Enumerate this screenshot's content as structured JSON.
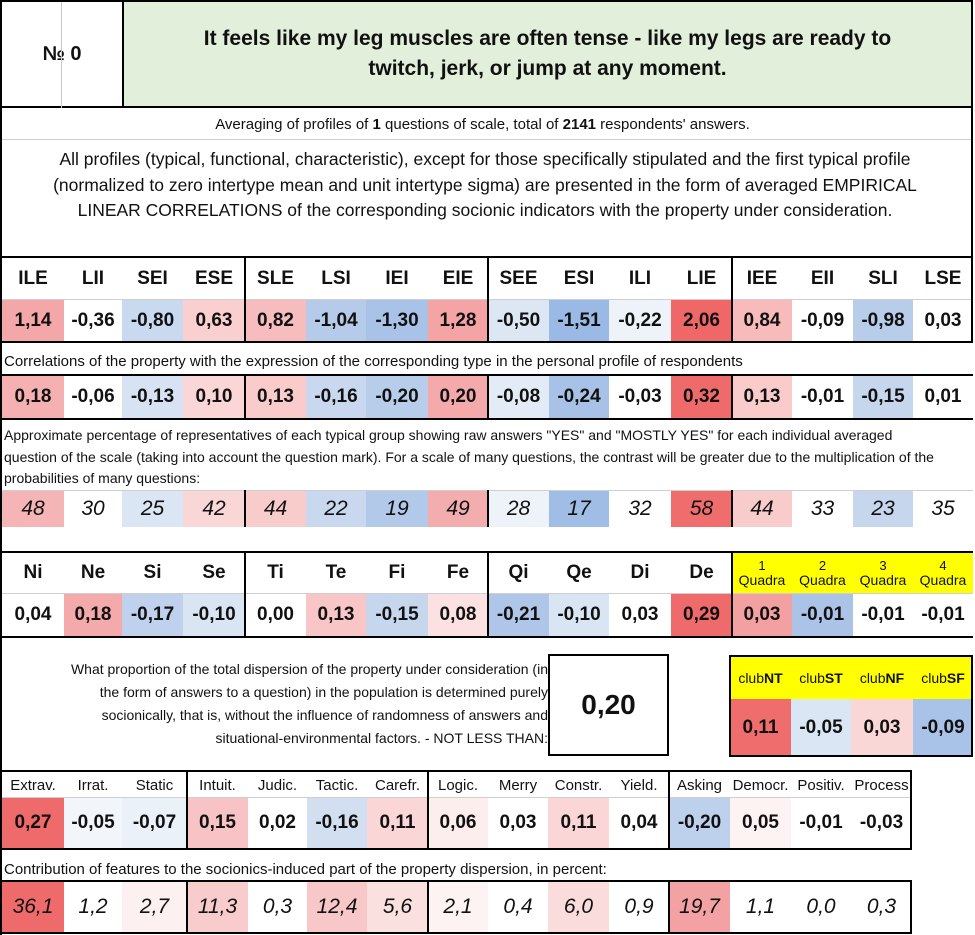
{
  "header": {
    "number_label": "№ 0",
    "title": "It feels like my leg muscles are often tense - like my legs are ready to twitch, jerk, or jump at any moment."
  },
  "averaging": {
    "prefix": "Averaging of profiles of ",
    "count": "1",
    "middle": " questions of scale, total of ",
    "respondents": "2141",
    "suffix": " respondents' answers."
  },
  "note": "All profiles (typical, functional, characteristic), except for those specifically stipulated and the first typical profile (normalized to zero intertype mean and unit intertype sigma) are presented in the form of averaged EMPIRICAL LINEAR CORRELATIONS of the corresponding socionic indicators with the property under consideration.",
  "types": {
    "headers": [
      "ILE",
      "LII",
      "SEI",
      "ESE",
      "SLE",
      "LSI",
      "IEI",
      "EIE",
      "SEE",
      "ESI",
      "ILI",
      "LIE",
      "IEE",
      "EII",
      "SLI",
      "LSE"
    ],
    "profile": [
      "1,14",
      "-0,36",
      "-0,80",
      "0,63",
      "0,82",
      "-1,04",
      "-1,30",
      "1,28",
      "-0,50",
      "-1,51",
      "-0,22",
      "2,06",
      "0,84",
      "-0,09",
      "-0,98",
      "0,03"
    ],
    "profile_colors": [
      "#f4a7a8",
      "#ffffff",
      "#c9d9ef",
      "#f9cfcf",
      "#f7bcbd",
      "#b6cbe9",
      "#a9c3e8",
      "#f4a4a5",
      "#dde7f4",
      "#9ab9e4",
      "#eef3fa",
      "#ef6767",
      "#f7bbbb",
      "#ffffff",
      "#b8cdea",
      "#ffffff"
    ],
    "corr_caption": "Correlations of the property with the expression of the corresponding type in the personal profile of respondents",
    "correlations": [
      "0,18",
      "-0,06",
      "-0,13",
      "0,10",
      "0,13",
      "-0,16",
      "-0,20",
      "0,20",
      "-0,08",
      "-0,24",
      "-0,03",
      "0,32",
      "0,13",
      "-0,01",
      "-0,15",
      "0,01"
    ],
    "corr_colors": [
      "#f5b0b1",
      "#ffffff",
      "#d7e2f2",
      "#fad6d6",
      "#f9cbcb",
      "#c9d8ee",
      "#b8cdea",
      "#f4aaab",
      "#e3ebf6",
      "#a8c2e7",
      "#ffffff",
      "#ef6b6b",
      "#f9cbcb",
      "#ffffff",
      "#c5d6ed",
      "#ffffff"
    ],
    "pct_caption": "Approximate percentage of representatives of each typical group showing raw answers \"YES\" and \"MOSTLY YES\" for each individual averaged question of the scale (taking into account the question mark). For a scale of many questions, the contrast will be greater due to the multiplication of the probabilities of many questions:",
    "percentages": [
      "48",
      "30",
      "25",
      "42",
      "44",
      "22",
      "19",
      "49",
      "28",
      "17",
      "32",
      "58",
      "44",
      "33",
      "23",
      "35"
    ],
    "pct_colors": [
      "#f5b4b5",
      "#ffffff",
      "#dbe6f4",
      "#fad7d7",
      "#f9cccc",
      "#c9d8ee",
      "#b3c9e9",
      "#f4adae",
      "#eef3fa",
      "#a0bde5",
      "#ffffff",
      "#ef6d6d",
      "#f9cccc",
      "#ffffff",
      "#c5d6ed",
      "#ffffff"
    ]
  },
  "functions": {
    "headers": [
      "Ni",
      "Ne",
      "Si",
      "Se",
      "Ti",
      "Te",
      "Fi",
      "Fe",
      "Qi",
      "Qe",
      "Di",
      "De"
    ],
    "values": [
      "0,04",
      "0,18",
      "-0,17",
      "-0,10",
      "0,00",
      "0,13",
      "-0,15",
      "0,08",
      "-0,21",
      "-0,10",
      "0,03",
      "0,29"
    ],
    "colors": [
      "#ffffff",
      "#f4a9aa",
      "#bfd1ec",
      "#dae5f4",
      "#ffffff",
      "#f8c6c7",
      "#c5d6ed",
      "#fbe1e1",
      "#afc6e8",
      "#dae5f4",
      "#ffffff",
      "#ef6a6a"
    ]
  },
  "quadras": {
    "labels": [
      {
        "num": "1",
        "word": "Quadra"
      },
      {
        "num": "2",
        "word": "Quadra"
      },
      {
        "num": "3",
        "word": "Quadra"
      },
      {
        "num": "4",
        "word": "Quadra"
      }
    ],
    "values": [
      "0,03",
      "-0,01",
      "-0,01",
      "-0,01"
    ],
    "colors": [
      "#f2a0a1",
      "#aac3e7",
      "#ffffff",
      "#ffffff"
    ],
    "header_color": "#ffff00"
  },
  "dispersion": {
    "text": "What proportion of the total dispersion of the property under consideration (in the form of answers to a question) in the population is determined purely socionically, that is, without the influence of randomness of answers and situational-environmental factors. - NOT LESS THAN:",
    "value": "0,20",
    "color": "#ffff00"
  },
  "clubs": {
    "labels": [
      {
        "pre": "club",
        "bold": "NT"
      },
      {
        "pre": "club",
        "bold": "ST"
      },
      {
        "pre": "club",
        "bold": "NF"
      },
      {
        "pre": "club",
        "bold": "SF"
      }
    ],
    "values": [
      "0,11",
      "-0,05",
      "0,03",
      "-0,09"
    ],
    "colors": [
      "#ef6d6d",
      "#dbe6f4",
      "#fad7d7",
      "#a9c3e8"
    ]
  },
  "traits": {
    "headers": [
      "Extrav.",
      "Irrat.",
      "Static",
      "Intuit.",
      "Judic.",
      "Tactic.",
      "Carefr.",
      "Logic.",
      "Merry",
      "Constr.",
      "Yield.",
      "Asking",
      "Democr.",
      "Positiv.",
      "Process"
    ],
    "values": [
      "0,27",
      "-0,05",
      "-0,07",
      "0,15",
      "0,02",
      "-0,16",
      "0,11",
      "0,06",
      "0,03",
      "0,11",
      "0,04",
      "-0,20",
      "0,05",
      "-0,01",
      "-0,03"
    ],
    "colors": [
      "#ef6a6a",
      "#f2f6fb",
      "#ebf1f9",
      "#f8c3c4",
      "#ffffff",
      "#d2dff1",
      "#fad6d6",
      "#fdeeee",
      "#ffffff",
      "#fad6d6",
      "#ffffff",
      "#bed1ec",
      "#fdf3f3",
      "#ffffff",
      "#ffffff"
    ],
    "contrib_caption": "Contribution of features to the socionics-induced part of the property dispersion, in percent:",
    "contributions": [
      "36,1",
      "1,2",
      "2,7",
      "11,3",
      "0,3",
      "12,4",
      "5,6",
      "2,1",
      "0,4",
      "6,0",
      "0,9",
      "19,7",
      "1,1",
      "0,0",
      "0,3"
    ],
    "contrib_colors": [
      "#ef6a6a",
      "#ffffff",
      "#fdf0f0",
      "#f8cccc",
      "#ffffff",
      "#f8c7c8",
      "#fbe0e0",
      "#fdf3f3",
      "#ffffff",
      "#fbdcdc",
      "#ffffff",
      "#f3a1a2",
      "#ffffff",
      "#ffffff",
      "#ffffff"
    ]
  }
}
